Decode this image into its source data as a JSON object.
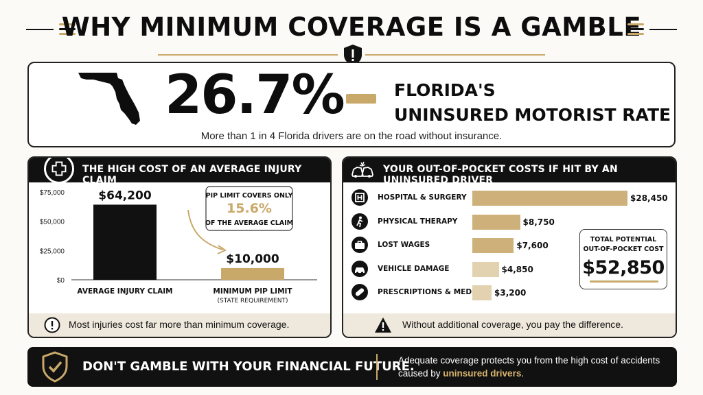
{
  "title": "WHY MINIMUM COVERAGE IS A GAMBLE",
  "headline_stat": {
    "value": "26.7%",
    "label_line1": "FLORIDA'S",
    "label_line2": "UNINSURED MOTORIST RATE",
    "subtext": "More than 1 in 4 Florida drivers are on the road without insurance."
  },
  "left_panel": {
    "heading": "THE HIGH COST OF AN AVERAGE INJURY CLAIM",
    "callout_line1": "PIP LIMIT COVERS ONLY",
    "callout_pct": "15.6%",
    "callout_line2": "OF THE AVERAGE CLAIM",
    "footer": "Most injuries cost far more than minimum coverage."
  },
  "right_panel": {
    "heading": "YOUR OUT-OF-POCKET COSTS IF HIT BY AN UNINSURED DRIVER",
    "total_label_line1": "TOTAL POTENTIAL",
    "total_label_line2": "OUT-OF-POCKET COST",
    "total_value": "$52,850",
    "footer": "Without additional coverage, you pay the difference."
  },
  "bottom": {
    "headline": "DON'T GAMBLE WITH YOUR FINANCIAL FUTURE.",
    "text_prefix": "Adequate coverage protects you from the high cost of accidents caused by ",
    "text_highlight": "uninsured drivers",
    "text_suffix": "."
  },
  "colors": {
    "gold": "#c9a96a",
    "bar_gold": "#cdb07a",
    "dark": "#111111",
    "footer_bg": "#efe8dc"
  },
  "chart_data": [
    {
      "type": "bar",
      "categories": [
        "AVERAGE INJURY CLAIM",
        "MINIMUM PIP LIMIT"
      ],
      "category_sublabels": [
        "",
        "(STATE REQUIREMENT)"
      ],
      "values": [
        64200,
        10000
      ],
      "value_labels": [
        "$64,200",
        "$10,000"
      ],
      "bar_colors": [
        "#111111",
        "#c9a96a"
      ],
      "yticks": [
        "$0",
        "$25,000",
        "$50,000",
        "$75,000"
      ],
      "ylim": [
        0,
        75000
      ]
    },
    {
      "type": "bar",
      "orientation": "horizontal",
      "categories": [
        "HOSPITAL & SURGERY",
        "PHYSICAL THERAPY",
        "LOST WAGES",
        "VEHICLE DAMAGE",
        "PRESCRIPTIONS & MEDICAL"
      ],
      "values": [
        28450,
        8750,
        7600,
        4850,
        3200
      ],
      "value_labels": [
        "$28,450",
        "$8,750",
        "$7,600",
        "$4,850",
        "$3,200"
      ],
      "icons": [
        "hospital-icon",
        "walking-person-icon",
        "briefcase-icon",
        "car-icon",
        "pill-icon"
      ]
    }
  ]
}
